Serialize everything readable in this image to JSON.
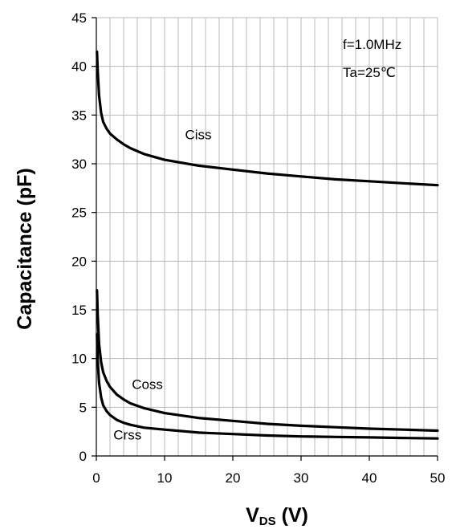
{
  "chart_data": {
    "type": "line",
    "title": "",
    "xlabel": "V",
    "xlabel_sub": "DS",
    "xlabel_unit": " (V)",
    "ylabel": "Capacitance (pF)",
    "xlim": [
      0,
      50
    ],
    "ylim": [
      0,
      45
    ],
    "x_ticks": [
      0,
      10,
      20,
      30,
      40,
      50
    ],
    "y_ticks": [
      0,
      5,
      10,
      15,
      20,
      25,
      30,
      35,
      40,
      45
    ],
    "x_minor_grid_step": 2,
    "y_grid_step": 5,
    "grid": true,
    "annotations": [
      "f=1.0MHz",
      "Ta=25℃"
    ],
    "series": [
      {
        "name": "Ciss",
        "x": [
          0.1,
          0.2,
          0.4,
          0.7,
          1,
          1.5,
          2,
          3,
          4,
          5,
          7,
          10,
          15,
          20,
          25,
          30,
          35,
          40,
          45,
          50
        ],
        "y": [
          41.5,
          39.5,
          37,
          35.2,
          34.3,
          33.6,
          33.1,
          32.5,
          32.0,
          31.6,
          31.0,
          30.4,
          29.8,
          29.4,
          29.0,
          28.7,
          28.4,
          28.2,
          28.0,
          27.8
        ]
      },
      {
        "name": "Coss",
        "x": [
          0.1,
          0.2,
          0.4,
          0.7,
          1,
          1.5,
          2,
          3,
          4,
          5,
          7,
          10,
          15,
          20,
          25,
          30,
          35,
          40,
          45,
          50
        ],
        "y": [
          17.0,
          14.5,
          11.5,
          9.6,
          8.6,
          7.7,
          7.1,
          6.3,
          5.8,
          5.4,
          4.9,
          4.4,
          3.9,
          3.6,
          3.3,
          3.1,
          2.95,
          2.8,
          2.7,
          2.6
        ]
      },
      {
        "name": "Crss",
        "x": [
          0.1,
          0.2,
          0.4,
          0.7,
          1,
          1.5,
          2,
          3,
          4,
          5,
          7,
          10,
          15,
          20,
          25,
          30,
          35,
          40,
          45,
          50
        ],
        "y": [
          12.5,
          9.8,
          7.5,
          6.0,
          5.2,
          4.6,
          4.2,
          3.7,
          3.4,
          3.2,
          2.9,
          2.7,
          2.4,
          2.25,
          2.1,
          2.0,
          1.95,
          1.9,
          1.85,
          1.8
        ]
      }
    ],
    "series_labels": {
      "Ciss": {
        "x": 13,
        "y": 32.5
      },
      "Coss": {
        "x": 5.2,
        "y": 6.9
      },
      "Crss": {
        "x": 2.5,
        "y": 1.7
      }
    }
  }
}
